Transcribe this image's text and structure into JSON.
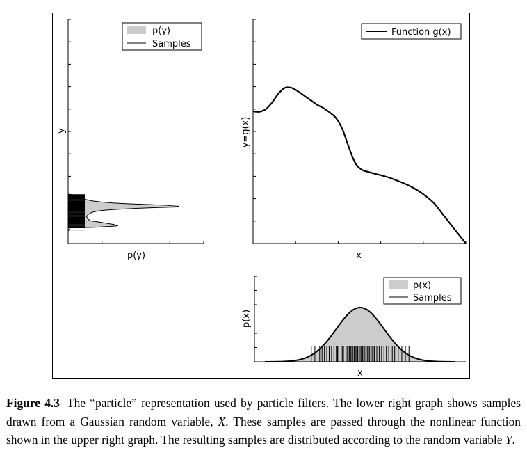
{
  "figure": {
    "caption_label": "Figure 4.3",
    "caption_part1": "The “particle” representation used by particle filters. The lower right graph shows samples drawn from a Gaussian random variable, ",
    "caption_var_x": "X",
    "caption_part2": ". These samples are passed through the nonlinear function shown in the upper right graph. The resulting samples are distributed according to the random variable ",
    "caption_var_y": "Y",
    "caption_part3": "."
  },
  "colors": {
    "fill": "#cccccc",
    "line": "#000000"
  },
  "chart_data": [
    {
      "id": "left",
      "type": "area",
      "orientation": "horizontal",
      "xlabel": "p(y)",
      "ylabel": "y",
      "legend": {
        "position": "top-right",
        "entries": [
          "p(y)",
          "Samples"
        ]
      },
      "y_ticks": 11,
      "x_ticks": 5,
      "density": {
        "y": [
          0.0,
          0.55,
          0.7,
          0.71,
          0.72,
          0.73,
          0.74,
          0.75,
          0.76,
          0.78,
          0.8,
          0.82,
          0.85,
          0.88,
          0.91,
          0.94,
          0.97,
          0.99,
          1.0,
          1.02,
          1.05,
          1.08,
          1.11,
          1.14,
          1.17,
          1.2,
          1.23,
          1.26,
          1.29,
          1.32,
          1.35,
          1.38,
          1.41,
          1.44,
          1.47,
          1.5,
          1.52,
          1.54,
          1.57,
          1.6,
          1.63,
          1.66,
          1.69,
          1.71,
          1.74,
          1.77,
          1.81,
          1.85,
          1.9,
          1.96,
          2.02,
          2.06,
          2.1,
          2.12,
          2.2,
          5.0
        ],
        "value": [
          0,
          0,
          0.02,
          0.14,
          0.22,
          0.27,
          0.3,
          0.33,
          0.38,
          0.43,
          0.45,
          0.43,
          0.41,
          0.37,
          0.34,
          0.3,
          0.26,
          0.23,
          0.21,
          0.2,
          0.19,
          0.18,
          0.175,
          0.175,
          0.17,
          0.165,
          0.17,
          0.175,
          0.18,
          0.19,
          0.2,
          0.21,
          0.23,
          0.26,
          0.3,
          0.36,
          0.43,
          0.51,
          0.61,
          0.77,
          0.98,
          1.0,
          0.92,
          0.88,
          0.72,
          0.55,
          0.4,
          0.3,
          0.22,
          0.16,
          0.1,
          0.07,
          0.04,
          0.12,
          0,
          0
        ]
      },
      "samples": [
        0.6,
        0.7,
        0.74,
        0.77,
        0.8,
        0.83,
        0.86,
        0.88,
        0.9,
        0.93,
        0.95,
        0.97,
        0.99,
        1.02,
        1.04,
        1.06,
        1.08,
        1.1,
        1.11,
        1.13,
        1.15,
        1.17,
        1.2,
        1.22,
        1.25,
        1.28,
        1.3,
        1.33,
        1.36,
        1.38,
        1.41,
        1.44,
        1.46,
        1.49,
        1.51,
        1.53,
        1.56,
        1.58,
        1.6,
        1.62,
        1.64,
        1.66,
        1.68,
        1.7,
        1.72,
        1.74,
        1.76,
        1.78,
        1.8,
        1.83,
        1.85,
        1.88,
        1.9,
        1.93,
        1.96,
        1.99,
        2.02,
        2.05,
        2.08,
        2.11,
        2.14,
        2.18
      ],
      "y_range": [
        0,
        10
      ],
      "x_range": [
        0,
        1.22
      ]
    },
    {
      "id": "upper-right",
      "type": "line",
      "xlabel": "x",
      "ylabel": "y=g(x)",
      "legend": {
        "position": "top-right",
        "entries": [
          "Function g(x)"
        ]
      },
      "x_ticks": 6,
      "y_ticks": 11,
      "x_range": [
        0,
        1
      ],
      "y_range": [
        0,
        10
      ],
      "series": [
        {
          "name": "Function g(x)",
          "x": [
            0,
            0.03,
            0.06,
            0.09,
            0.12,
            0.15,
            0.18,
            0.21,
            0.24,
            0.27,
            0.3,
            0.33,
            0.36,
            0.39,
            0.42,
            0.45,
            0.48,
            0.51,
            0.54,
            0.57,
            0.6,
            0.63,
            0.66,
            0.7,
            0.75,
            0.8,
            0.85,
            0.9,
            0.95,
            1.0
          ],
          "y": [
            5.9,
            5.88,
            6.0,
            6.3,
            6.7,
            6.95,
            6.95,
            6.8,
            6.6,
            6.4,
            6.2,
            6.05,
            5.85,
            5.6,
            5.1,
            4.3,
            3.6,
            3.3,
            3.2,
            3.12,
            3.05,
            2.97,
            2.87,
            2.72,
            2.5,
            2.2,
            1.8,
            1.2,
            0.6,
            0.0
          ]
        }
      ]
    },
    {
      "id": "lower-right",
      "type": "area",
      "xlabel": "x",
      "ylabel": "p(x)",
      "legend": {
        "position": "top-right",
        "entries": [
          "p(x)",
          "Samples"
        ]
      },
      "x_range": [
        -4,
        4
      ],
      "y_range": [
        0,
        0.5
      ],
      "y_ticks": 7,
      "gaussian": {
        "mean": 0,
        "std": 1
      },
      "samples": [
        -2.05,
        -1.9,
        -1.7,
        -1.6,
        -1.5,
        -1.4,
        -1.3,
        -1.2,
        -1.1,
        -1.0,
        -0.95,
        -0.9,
        -0.8,
        -0.75,
        -0.7,
        -0.6,
        -0.55,
        -0.5,
        -0.45,
        -0.4,
        -0.35,
        -0.3,
        -0.25,
        -0.2,
        -0.15,
        -0.1,
        -0.05,
        0,
        0.05,
        0.1,
        0.15,
        0.2,
        0.25,
        0.3,
        0.35,
        0.4,
        0.5,
        0.55,
        0.6,
        0.7,
        0.8,
        0.9,
        1.0,
        1.1,
        1.2,
        1.35,
        1.45,
        1.6,
        1.75,
        1.9,
        2.05
      ]
    }
  ]
}
